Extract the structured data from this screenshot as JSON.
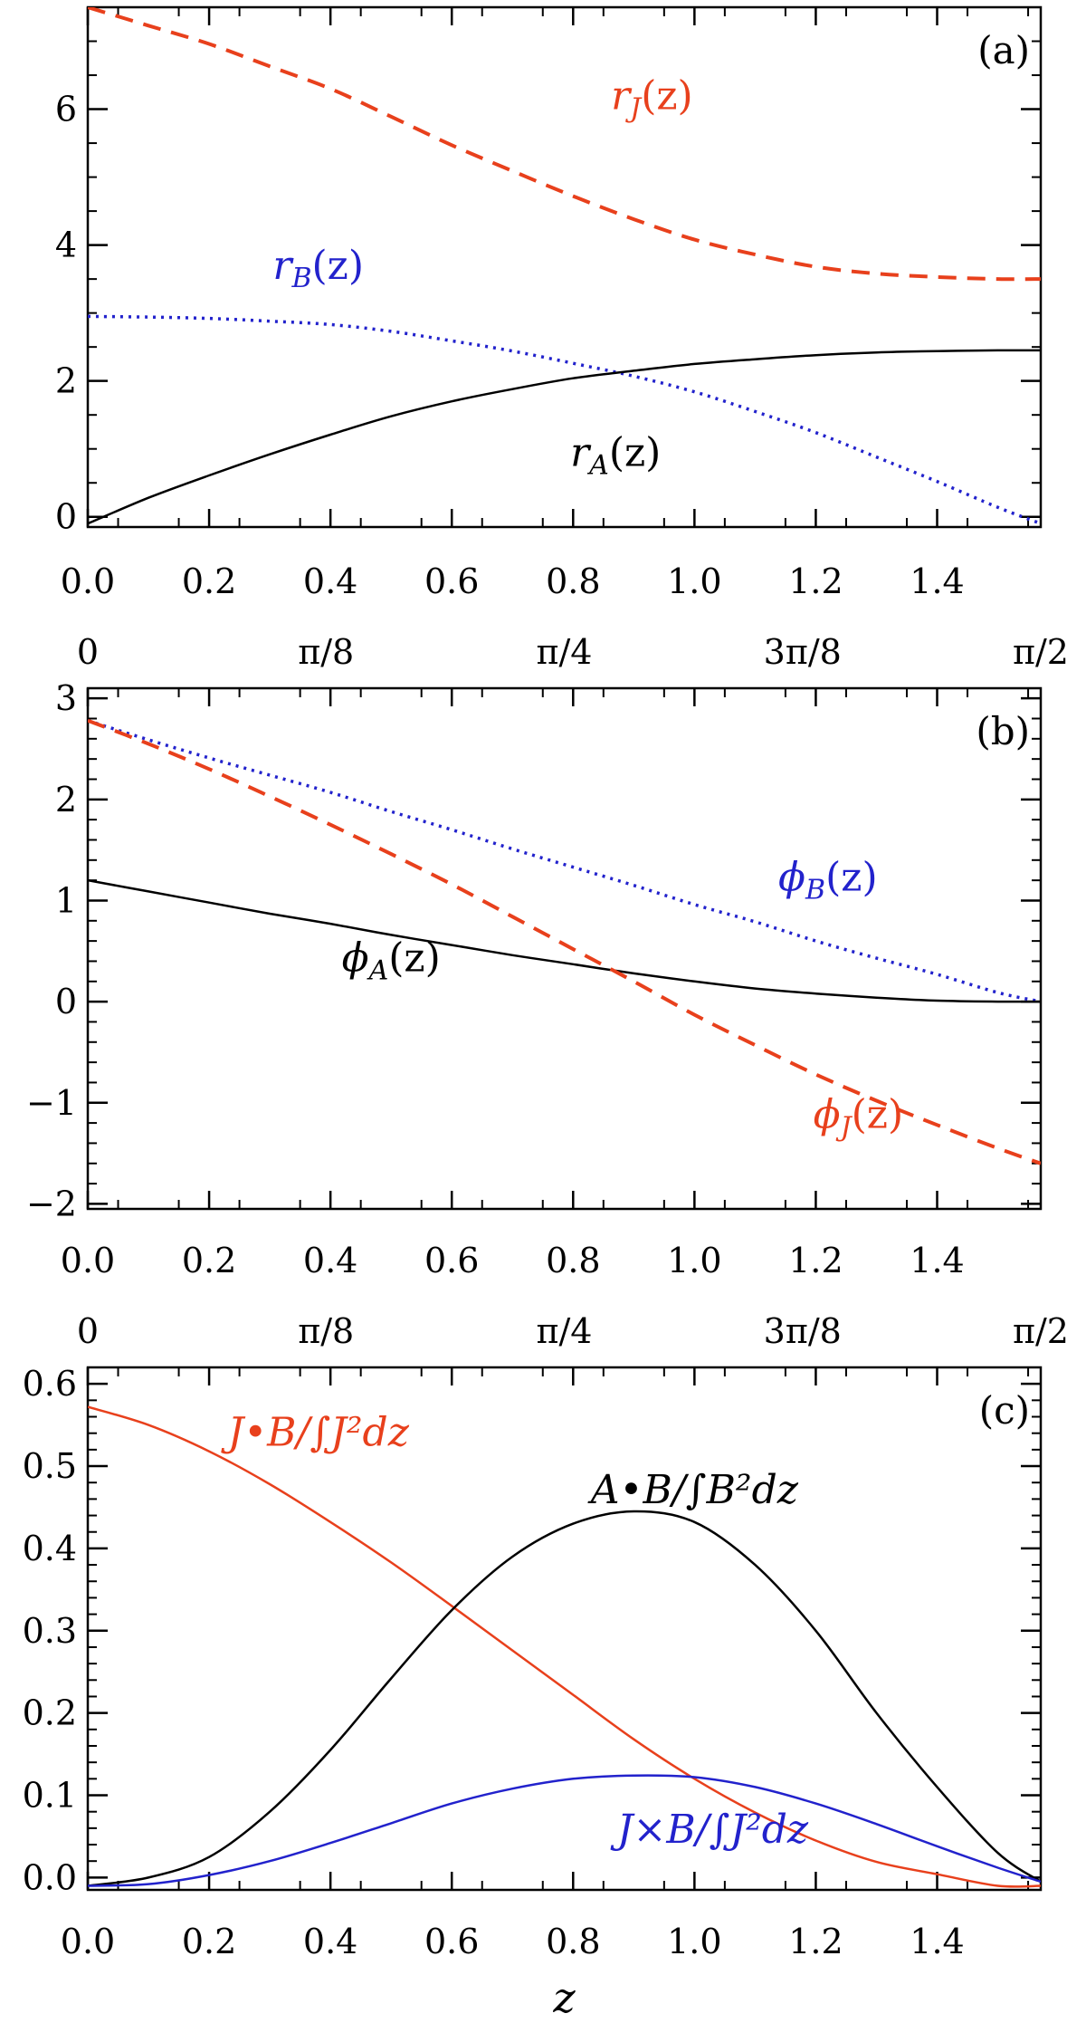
{
  "figure": {
    "xlabel": "z"
  },
  "colors": {
    "red": "#e8401c",
    "blue": "#2222cc",
    "black": "#000000"
  },
  "chart_data": [
    {
      "type": "line",
      "panel_label": "(a)",
      "xlim": [
        0,
        1.5708
      ],
      "ylim": [
        -0.15,
        7.5
      ],
      "x_ticks": [
        0.0,
        0.2,
        0.4,
        0.6,
        0.8,
        1.0,
        1.2,
        1.4
      ],
      "x_tick_labels": [
        "0.0",
        "0.2",
        "0.4",
        "0.6",
        "0.8",
        "1.0",
        "1.2",
        "1.4"
      ],
      "y_ticks": [
        0,
        2,
        4,
        6
      ],
      "y_tick_labels": [
        "0",
        "2",
        "4",
        "6"
      ],
      "top_ticks": [
        0,
        0.3927,
        0.7854,
        1.1781,
        1.5708
      ],
      "top_tick_labels": [
        "0",
        "π/8",
        "π/4",
        "3π/8",
        "π/2"
      ],
      "x": [
        0.0,
        0.1,
        0.2,
        0.3,
        0.4,
        0.5,
        0.6,
        0.7,
        0.8,
        0.9,
        1.0,
        1.1,
        1.2,
        1.3,
        1.4,
        1.5,
        1.5708
      ],
      "series": [
        {
          "name": "r_J(z)",
          "name_main": "r",
          "name_sub": "J",
          "name_arg": "(z)",
          "color": "#e8401c",
          "style": "dashed",
          "values": [
            7.5,
            7.23,
            6.96,
            6.63,
            6.3,
            5.89,
            5.47,
            5.09,
            4.72,
            4.38,
            4.08,
            3.86,
            3.68,
            3.58,
            3.53,
            3.5,
            3.5
          ]
        },
        {
          "name": "r_B(z)",
          "name_main": "r",
          "name_sub": "B",
          "name_arg": "(z)",
          "color": "#2222cc",
          "style": "dotted",
          "values": [
            2.95,
            2.94,
            2.92,
            2.88,
            2.83,
            2.73,
            2.59,
            2.44,
            2.26,
            2.07,
            1.84,
            1.55,
            1.24,
            0.88,
            0.52,
            0.14,
            -0.1
          ]
        },
        {
          "name": "r_A(z)",
          "name_main": "r",
          "name_sub": "A",
          "name_arg": "(z)",
          "color": "#000000",
          "style": "solid",
          "values": [
            -0.1,
            0.28,
            0.61,
            0.92,
            1.21,
            1.48,
            1.7,
            1.88,
            2.04,
            2.15,
            2.25,
            2.32,
            2.38,
            2.42,
            2.44,
            2.45,
            2.45
          ]
        }
      ]
    },
    {
      "type": "line",
      "panel_label": "(b)",
      "xlim": [
        0,
        1.5708
      ],
      "ylim": [
        -2.05,
        3.1
      ],
      "x_ticks": [
        0.0,
        0.2,
        0.4,
        0.6,
        0.8,
        1.0,
        1.2,
        1.4
      ],
      "x_tick_labels": [
        "0.0",
        "0.2",
        "0.4",
        "0.6",
        "0.8",
        "1.0",
        "1.2",
        "1.4"
      ],
      "y_ticks": [
        -2,
        -1,
        0,
        1,
        2,
        3
      ],
      "y_tick_labels": [
        "−2",
        "−1",
        "0",
        "1",
        "2",
        "3"
      ],
      "top_ticks": [
        0,
        0.3927,
        0.7854,
        1.1781,
        1.5708
      ],
      "top_tick_labels": [
        "0",
        "π/8",
        "π/4",
        "3π/8",
        "π/2"
      ],
      "x": [
        0.0,
        0.1,
        0.2,
        0.3,
        0.4,
        0.5,
        0.6,
        0.7,
        0.8,
        0.9,
        1.0,
        1.1,
        1.2,
        1.3,
        1.4,
        1.5,
        1.5708
      ],
      "series": [
        {
          "name": "ϕ_B(z)",
          "name_main": "ϕ",
          "name_sub": "B",
          "name_arg": "(z)",
          "color": "#2222cc",
          "style": "dotted",
          "values": [
            2.78,
            2.59,
            2.41,
            2.24,
            2.07,
            1.88,
            1.7,
            1.51,
            1.33,
            1.15,
            0.96,
            0.79,
            0.6,
            0.43,
            0.27,
            0.09,
            0.0
          ]
        },
        {
          "name": "ϕ_A(z)",
          "name_main": "ϕ",
          "name_sub": "A",
          "name_arg": "(z)",
          "color": "#000000",
          "style": "solid",
          "values": [
            1.2,
            1.09,
            0.98,
            0.87,
            0.77,
            0.66,
            0.56,
            0.46,
            0.37,
            0.28,
            0.2,
            0.13,
            0.08,
            0.04,
            0.01,
            0.0,
            0.0
          ]
        },
        {
          "name": "ϕ_J(z)",
          "name_main": "ϕ",
          "name_sub": "J",
          "name_arg": "(z)",
          "color": "#e8401c",
          "style": "dashed",
          "values": [
            2.78,
            2.55,
            2.3,
            2.03,
            1.75,
            1.46,
            1.16,
            0.84,
            0.52,
            0.2,
            -0.13,
            -0.43,
            -0.72,
            -0.98,
            -1.22,
            -1.45,
            -1.6
          ]
        }
      ]
    },
    {
      "type": "line",
      "panel_label": "(c)",
      "xlim": [
        0,
        1.5708
      ],
      "ylim": [
        -0.015,
        0.62
      ],
      "x_ticks": [
        0.0,
        0.2,
        0.4,
        0.6,
        0.8,
        1.0,
        1.2,
        1.4
      ],
      "x_tick_labels": [
        "0.0",
        "0.2",
        "0.4",
        "0.6",
        "0.8",
        "1.0",
        "1.2",
        "1.4"
      ],
      "y_ticks": [
        0.0,
        0.1,
        0.2,
        0.3,
        0.4,
        0.5,
        0.6
      ],
      "y_tick_labels": [
        "0.0",
        "0.1",
        "0.2",
        "0.3",
        "0.4",
        "0.5",
        "0.6"
      ],
      "xlabel": "z",
      "x": [
        0.0,
        0.1,
        0.2,
        0.3,
        0.4,
        0.5,
        0.6,
        0.7,
        0.8,
        0.9,
        1.0,
        1.1,
        1.2,
        1.3,
        1.4,
        1.5,
        1.5708
      ],
      "series": [
        {
          "name": "J•B/∫J²dz",
          "color": "#e8401c",
          "style": "solid",
          "values": [
            0.572,
            0.55,
            0.518,
            0.478,
            0.432,
            0.383,
            0.33,
            0.276,
            0.222,
            0.168,
            0.12,
            0.079,
            0.045,
            0.019,
            0.004,
            -0.01,
            -0.01
          ]
        },
        {
          "name": "A•B/∫B²dz",
          "color": "#000000",
          "style": "solid",
          "values": [
            -0.01,
            0.0,
            0.025,
            0.08,
            0.155,
            0.242,
            0.325,
            0.39,
            0.43,
            0.445,
            0.432,
            0.38,
            0.3,
            0.2,
            0.11,
            0.03,
            -0.005
          ]
        },
        {
          "name": "J×B/∫J²dz",
          "color": "#2222cc",
          "style": "solid",
          "values": [
            -0.01,
            -0.008,
            0.003,
            0.02,
            0.042,
            0.066,
            0.09,
            0.108,
            0.12,
            0.124,
            0.122,
            0.11,
            0.09,
            0.065,
            0.038,
            0.012,
            -0.005
          ]
        }
      ]
    }
  ]
}
